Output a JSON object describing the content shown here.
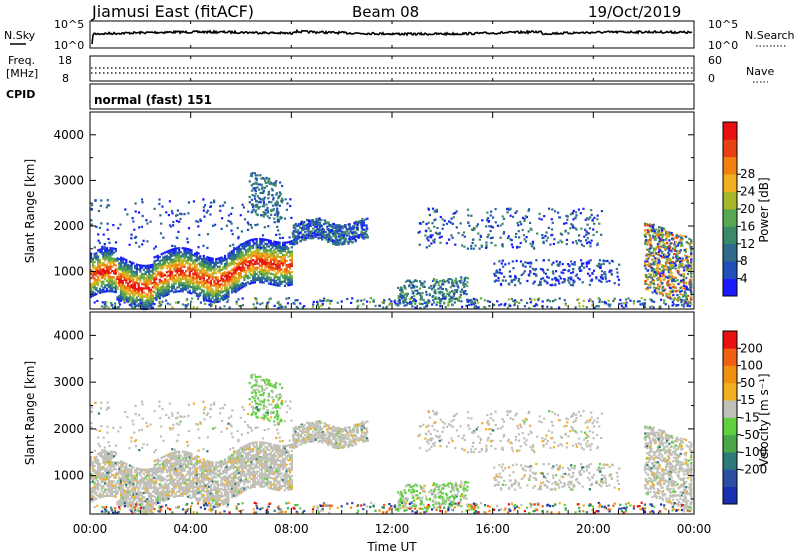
{
  "header": {
    "station": "Jiamusi East (fitACF)",
    "beam": "Beam 08",
    "date": "19/Oct/2019"
  },
  "noise_panel": {
    "left_label": "N.Sky",
    "right_label": "N.Search",
    "left_ticks": [
      "10^5",
      "10^0"
    ],
    "right_ticks": [
      "10^5",
      "10^0"
    ]
  },
  "freq_panel": {
    "left_label_1": "Freq.",
    "left_label_2": "[MHz]",
    "left_ticks": [
      "18",
      "8"
    ],
    "right_label": "Nave",
    "right_ticks": [
      "60",
      "0"
    ],
    "cpid_label": "CPID",
    "mode_text": "normal (fast) 151"
  },
  "chart_data": [
    {
      "type": "heatmap",
      "name": "power",
      "ylabel": "Slant Range [km]",
      "yticks": [
        1000,
        2000,
        3000,
        4000
      ],
      "ylim": [
        180,
        4500
      ],
      "xlabel": "Time UT",
      "xticks": [
        "00:00",
        "04:00",
        "08:00",
        "12:00",
        "16:00",
        "20:00",
        "00:00"
      ],
      "xlim_hours": [
        0,
        24
      ],
      "colorbar": {
        "label": "Power [dB]",
        "ticks": [
          "4",
          "8",
          "12",
          "16",
          "20",
          "24",
          "28"
        ],
        "colors": [
          "#1a1aff",
          "#1f4fb8",
          "#2e6a8a",
          "#3a8a6a",
          "#58a850",
          "#a8b828",
          "#f0b020",
          "#f08010",
          "#e84010",
          "#e81010"
        ]
      }
    },
    {
      "type": "heatmap",
      "name": "velocity",
      "ylabel": "Slant Range [km]",
      "yticks": [
        1000,
        2000,
        3000,
        4000
      ],
      "ylim": [
        180,
        4500
      ],
      "xlabel": "Time UT",
      "xticks": [
        "00:00",
        "04:00",
        "08:00",
        "12:00",
        "16:00",
        "20:00",
        "00:00"
      ],
      "colorbar": {
        "label": "Velocity [m s⁻¹]",
        "ticks": [
          "200",
          "100",
          "50",
          "15",
          "-15",
          "-50",
          "-100",
          "-200"
        ],
        "colors": [
          "#1a2fb0",
          "#2a4fa0",
          "#2e7a7a",
          "#48a848",
          "#60d040",
          "#c0c0b8",
          "#f0b020",
          "#f09010",
          "#f06010",
          "#e81010"
        ]
      }
    }
  ]
}
